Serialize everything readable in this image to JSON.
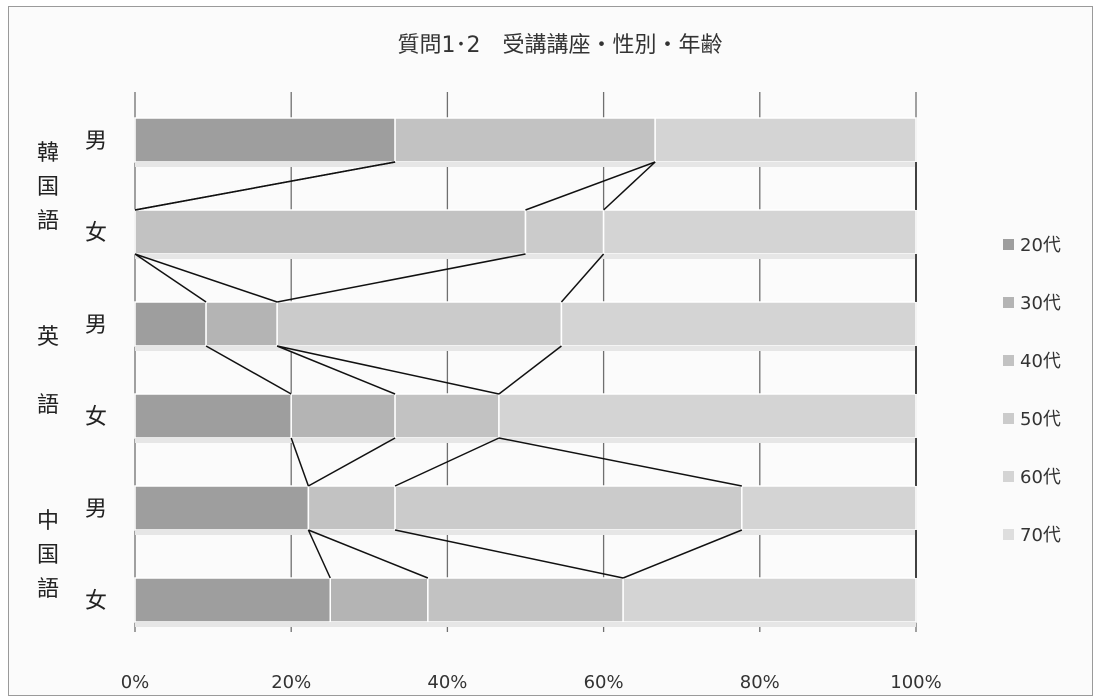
{
  "chart_data": {
    "type": "bar",
    "stacked": "100%",
    "orientation": "horizontal",
    "title": "質問1･2　受講講座・性別・年齢",
    "xlim": [
      0,
      100
    ],
    "xticks": [
      "0%",
      "20%",
      "40%",
      "60%",
      "80%",
      "100%"
    ],
    "grid": true,
    "legend_position": "right",
    "groups": [
      {
        "label": "韓国語",
        "rows": [
          0,
          1
        ]
      },
      {
        "label": "英語",
        "rows": [
          2,
          3
        ]
      },
      {
        "label": "中国語",
        "rows": [
          4,
          5
        ]
      }
    ],
    "categories": [
      "男",
      "女",
      "男",
      "女",
      "男",
      "女"
    ],
    "series": [
      {
        "name": "20代",
        "color": "#9e9e9e",
        "values": [
          33.3,
          0,
          9.1,
          20,
          22.2,
          25
        ]
      },
      {
        "name": "30代",
        "color": "#b4b4b4",
        "values": [
          0,
          0,
          9.1,
          13.3,
          0,
          12.5
        ]
      },
      {
        "name": "40代",
        "color": "#c2c2c2",
        "values": [
          33.3,
          50,
          0,
          13.3,
          11.1,
          25
        ]
      },
      {
        "name": "50代",
        "color": "#cbcbcb",
        "values": [
          0,
          10,
          36.4,
          0,
          44.4,
          0
        ]
      },
      {
        "name": "60代",
        "color": "#d4d4d4",
        "values": [
          33.4,
          40,
          45.4,
          53.4,
          22.3,
          37.5
        ]
      },
      {
        "name": "70代",
        "color": "#dedede",
        "values": [
          0,
          0,
          0,
          0,
          0,
          0
        ]
      }
    ]
  }
}
